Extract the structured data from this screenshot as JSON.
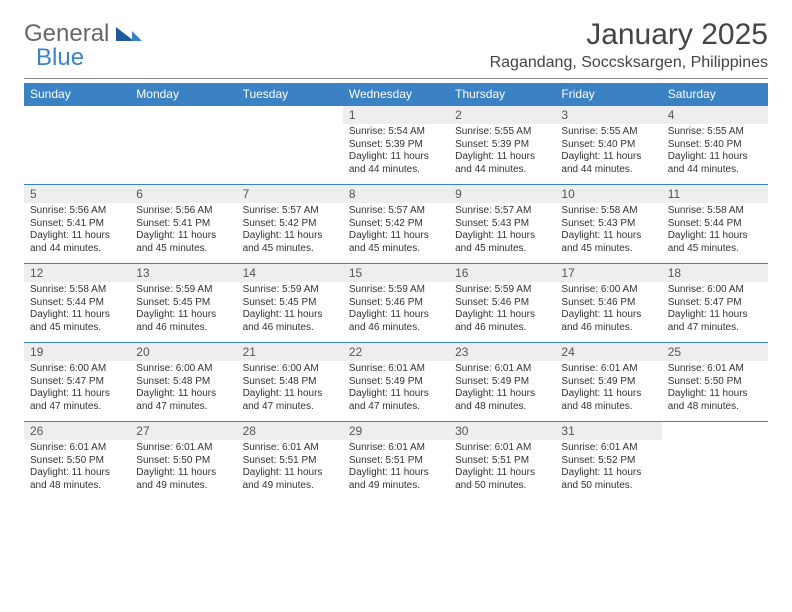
{
  "logo": {
    "text1": "General",
    "text2": "Blue"
  },
  "title": "January 2025",
  "location": "Ragandang, Soccsksargen, Philippines",
  "header_bg": "#3b82c4",
  "header_fg": "#ffffff",
  "daynum_bg": "#eeeeee",
  "rule_color": "#3b82c4",
  "days_of_week": [
    "Sunday",
    "Monday",
    "Tuesday",
    "Wednesday",
    "Thursday",
    "Friday",
    "Saturday"
  ],
  "weeks": [
    [
      {
        "n": "",
        "lines": [
          "",
          "",
          "",
          ""
        ]
      },
      {
        "n": "",
        "lines": [
          "",
          "",
          "",
          ""
        ]
      },
      {
        "n": "",
        "lines": [
          "",
          "",
          "",
          ""
        ]
      },
      {
        "n": "1",
        "lines": [
          "Sunrise: 5:54 AM",
          "Sunset: 5:39 PM",
          "Daylight: 11 hours",
          "and 44 minutes."
        ]
      },
      {
        "n": "2",
        "lines": [
          "Sunrise: 5:55 AM",
          "Sunset: 5:39 PM",
          "Daylight: 11 hours",
          "and 44 minutes."
        ]
      },
      {
        "n": "3",
        "lines": [
          "Sunrise: 5:55 AM",
          "Sunset: 5:40 PM",
          "Daylight: 11 hours",
          "and 44 minutes."
        ]
      },
      {
        "n": "4",
        "lines": [
          "Sunrise: 5:55 AM",
          "Sunset: 5:40 PM",
          "Daylight: 11 hours",
          "and 44 minutes."
        ]
      }
    ],
    [
      {
        "n": "5",
        "lines": [
          "Sunrise: 5:56 AM",
          "Sunset: 5:41 PM",
          "Daylight: 11 hours",
          "and 44 minutes."
        ]
      },
      {
        "n": "6",
        "lines": [
          "Sunrise: 5:56 AM",
          "Sunset: 5:41 PM",
          "Daylight: 11 hours",
          "and 45 minutes."
        ]
      },
      {
        "n": "7",
        "lines": [
          "Sunrise: 5:57 AM",
          "Sunset: 5:42 PM",
          "Daylight: 11 hours",
          "and 45 minutes."
        ]
      },
      {
        "n": "8",
        "lines": [
          "Sunrise: 5:57 AM",
          "Sunset: 5:42 PM",
          "Daylight: 11 hours",
          "and 45 minutes."
        ]
      },
      {
        "n": "9",
        "lines": [
          "Sunrise: 5:57 AM",
          "Sunset: 5:43 PM",
          "Daylight: 11 hours",
          "and 45 minutes."
        ]
      },
      {
        "n": "10",
        "lines": [
          "Sunrise: 5:58 AM",
          "Sunset: 5:43 PM",
          "Daylight: 11 hours",
          "and 45 minutes."
        ]
      },
      {
        "n": "11",
        "lines": [
          "Sunrise: 5:58 AM",
          "Sunset: 5:44 PM",
          "Daylight: 11 hours",
          "and 45 minutes."
        ]
      }
    ],
    [
      {
        "n": "12",
        "lines": [
          "Sunrise: 5:58 AM",
          "Sunset: 5:44 PM",
          "Daylight: 11 hours",
          "and 45 minutes."
        ]
      },
      {
        "n": "13",
        "lines": [
          "Sunrise: 5:59 AM",
          "Sunset: 5:45 PM",
          "Daylight: 11 hours",
          "and 46 minutes."
        ]
      },
      {
        "n": "14",
        "lines": [
          "Sunrise: 5:59 AM",
          "Sunset: 5:45 PM",
          "Daylight: 11 hours",
          "and 46 minutes."
        ]
      },
      {
        "n": "15",
        "lines": [
          "Sunrise: 5:59 AM",
          "Sunset: 5:46 PM",
          "Daylight: 11 hours",
          "and 46 minutes."
        ]
      },
      {
        "n": "16",
        "lines": [
          "Sunrise: 5:59 AM",
          "Sunset: 5:46 PM",
          "Daylight: 11 hours",
          "and 46 minutes."
        ]
      },
      {
        "n": "17",
        "lines": [
          "Sunrise: 6:00 AM",
          "Sunset: 5:46 PM",
          "Daylight: 11 hours",
          "and 46 minutes."
        ]
      },
      {
        "n": "18",
        "lines": [
          "Sunrise: 6:00 AM",
          "Sunset: 5:47 PM",
          "Daylight: 11 hours",
          "and 47 minutes."
        ]
      }
    ],
    [
      {
        "n": "19",
        "lines": [
          "Sunrise: 6:00 AM",
          "Sunset: 5:47 PM",
          "Daylight: 11 hours",
          "and 47 minutes."
        ]
      },
      {
        "n": "20",
        "lines": [
          "Sunrise: 6:00 AM",
          "Sunset: 5:48 PM",
          "Daylight: 11 hours",
          "and 47 minutes."
        ]
      },
      {
        "n": "21",
        "lines": [
          "Sunrise: 6:00 AM",
          "Sunset: 5:48 PM",
          "Daylight: 11 hours",
          "and 47 minutes."
        ]
      },
      {
        "n": "22",
        "lines": [
          "Sunrise: 6:01 AM",
          "Sunset: 5:49 PM",
          "Daylight: 11 hours",
          "and 47 minutes."
        ]
      },
      {
        "n": "23",
        "lines": [
          "Sunrise: 6:01 AM",
          "Sunset: 5:49 PM",
          "Daylight: 11 hours",
          "and 48 minutes."
        ]
      },
      {
        "n": "24",
        "lines": [
          "Sunrise: 6:01 AM",
          "Sunset: 5:49 PM",
          "Daylight: 11 hours",
          "and 48 minutes."
        ]
      },
      {
        "n": "25",
        "lines": [
          "Sunrise: 6:01 AM",
          "Sunset: 5:50 PM",
          "Daylight: 11 hours",
          "and 48 minutes."
        ]
      }
    ],
    [
      {
        "n": "26",
        "lines": [
          "Sunrise: 6:01 AM",
          "Sunset: 5:50 PM",
          "Daylight: 11 hours",
          "and 48 minutes."
        ]
      },
      {
        "n": "27",
        "lines": [
          "Sunrise: 6:01 AM",
          "Sunset: 5:50 PM",
          "Daylight: 11 hours",
          "and 49 minutes."
        ]
      },
      {
        "n": "28",
        "lines": [
          "Sunrise: 6:01 AM",
          "Sunset: 5:51 PM",
          "Daylight: 11 hours",
          "and 49 minutes."
        ]
      },
      {
        "n": "29",
        "lines": [
          "Sunrise: 6:01 AM",
          "Sunset: 5:51 PM",
          "Daylight: 11 hours",
          "and 49 minutes."
        ]
      },
      {
        "n": "30",
        "lines": [
          "Sunrise: 6:01 AM",
          "Sunset: 5:51 PM",
          "Daylight: 11 hours",
          "and 50 minutes."
        ]
      },
      {
        "n": "31",
        "lines": [
          "Sunrise: 6:01 AM",
          "Sunset: 5:52 PM",
          "Daylight: 11 hours",
          "and 50 minutes."
        ]
      },
      {
        "n": "",
        "lines": [
          "",
          "",
          "",
          ""
        ]
      }
    ]
  ]
}
